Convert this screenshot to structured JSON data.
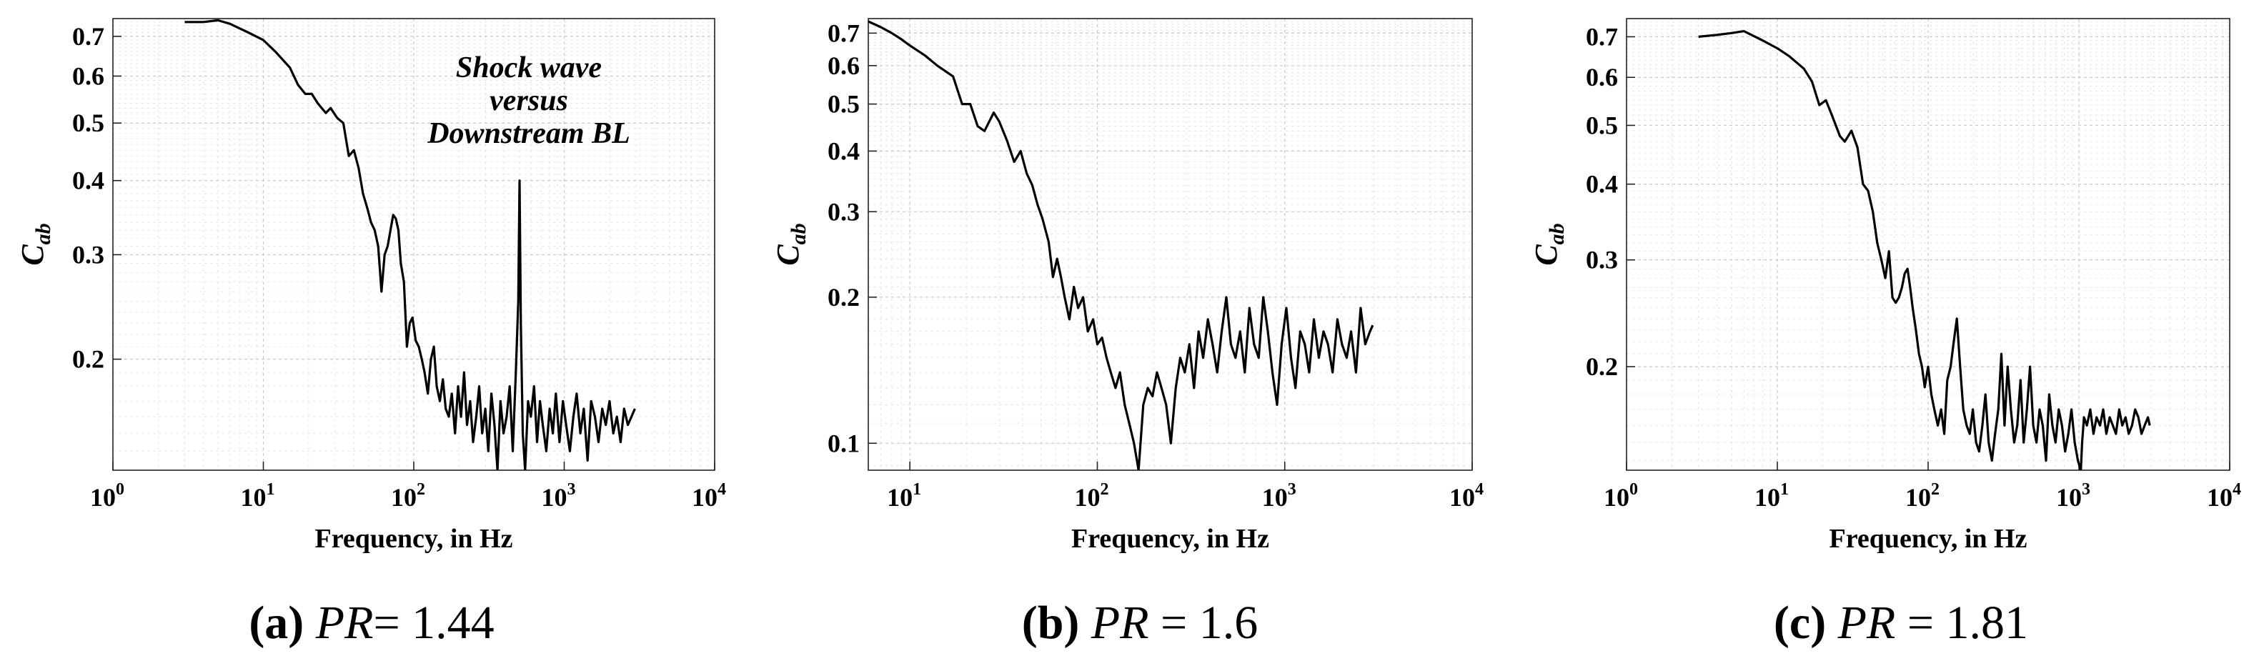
{
  "chart_data": [
    {
      "type": "line",
      "panel_letter": "(a)",
      "caption_pr_symbol": "PR",
      "caption_value": "= 1.44",
      "xlabel": "Frequency, in Hz",
      "ylabel_main": "C",
      "ylabel_sub": "ab",
      "x_scale": "log",
      "y_scale": "log",
      "xlim": [
        1,
        10000
      ],
      "ylim": [
        0.13,
        0.75
      ],
      "x_ticks": [
        {
          "base": "10",
          "exp": "0",
          "value": 1
        },
        {
          "base": "10",
          "exp": "1",
          "value": 10
        },
        {
          "base": "10",
          "exp": "2",
          "value": 100
        },
        {
          "base": "10",
          "exp": "3",
          "value": 1000
        },
        {
          "base": "10",
          "exp": "4",
          "value": 10000
        }
      ],
      "y_ticks": [
        {
          "label": "0.7",
          "value": 0.7
        },
        {
          "label": "0.6",
          "value": 0.6
        },
        {
          "label": "0.5",
          "value": 0.5
        },
        {
          "label": "0.4",
          "value": 0.4
        },
        {
          "label": "0.3",
          "value": 0.3
        },
        {
          "label": "0.2",
          "value": 0.2
        }
      ],
      "annotation": [
        "Shock wave",
        "versus",
        "Downstream BL"
      ],
      "grid": true,
      "series": [
        {
          "name": "Cab",
          "x": [
            3,
            4,
            5,
            6,
            8,
            10,
            12,
            15,
            17,
            19,
            21,
            23,
            26,
            28,
            31,
            34,
            37,
            40,
            43,
            46,
            49,
            52,
            55,
            58,
            61,
            64,
            67,
            70,
            73,
            76,
            79,
            82,
            86,
            90,
            94,
            98,
            103,
            108,
            113,
            118,
            124,
            130,
            136,
            142,
            149,
            156,
            163,
            171,
            179,
            188,
            197,
            206,
            216,
            226,
            237,
            248,
            260,
            272,
            285,
            299,
            313,
            328,
            344,
            360,
            377,
            395,
            414,
            434,
            455,
            477,
            495,
            505,
            515,
            530,
            550,
            575,
            600,
            630,
            660,
            690,
            720,
            760,
            800,
            840,
            880,
            930,
            980,
            1030,
            1090,
            1150,
            1210,
            1280,
            1350,
            1430,
            1510,
            1600,
            1690,
            1790,
            1890,
            2000,
            2120,
            2240,
            2370,
            2500,
            2650,
            2800,
            2950
          ],
          "y": [
            0.74,
            0.74,
            0.745,
            0.735,
            0.71,
            0.69,
            0.66,
            0.62,
            0.58,
            0.56,
            0.56,
            0.54,
            0.52,
            0.53,
            0.51,
            0.5,
            0.44,
            0.45,
            0.42,
            0.38,
            0.36,
            0.34,
            0.33,
            0.31,
            0.26,
            0.3,
            0.31,
            0.33,
            0.35,
            0.345,
            0.33,
            0.29,
            0.27,
            0.21,
            0.23,
            0.235,
            0.215,
            0.21,
            0.2,
            0.19,
            0.175,
            0.2,
            0.21,
            0.18,
            0.17,
            0.185,
            0.165,
            0.16,
            0.175,
            0.15,
            0.18,
            0.16,
            0.19,
            0.155,
            0.17,
            0.145,
            0.16,
            0.18,
            0.15,
            0.165,
            0.14,
            0.175,
            0.155,
            0.13,
            0.17,
            0.15,
            0.16,
            0.18,
            0.14,
            0.19,
            0.25,
            0.4,
            0.23,
            0.15,
            0.13,
            0.17,
            0.16,
            0.18,
            0.145,
            0.17,
            0.155,
            0.14,
            0.165,
            0.15,
            0.175,
            0.145,
            0.17,
            0.155,
            0.14,
            0.16,
            0.175,
            0.15,
            0.165,
            0.135,
            0.17,
            0.16,
            0.145,
            0.165,
            0.155,
            0.17,
            0.15,
            0.16,
            0.145,
            0.165,
            0.155,
            0.16,
            0.165
          ]
        }
      ]
    },
    {
      "type": "line",
      "panel_letter": "(b)",
      "caption_pr_symbol": "PR",
      "caption_value": " = 1.6",
      "xlabel": "Frequency, in Hz",
      "ylabel_main": "C",
      "ylabel_sub": "ab",
      "x_scale": "log",
      "y_scale": "log",
      "xlim": [
        6,
        10000
      ],
      "ylim": [
        0.088,
        0.75
      ],
      "x_ticks": [
        {
          "base": "10",
          "exp": "1",
          "value": 10
        },
        {
          "base": "10",
          "exp": "2",
          "value": 100
        },
        {
          "base": "10",
          "exp": "3",
          "value": 1000
        },
        {
          "base": "10",
          "exp": "4",
          "value": 10000
        }
      ],
      "y_ticks": [
        {
          "label": "0.7",
          "value": 0.7
        },
        {
          "label": "0.6",
          "value": 0.6
        },
        {
          "label": "0.5",
          "value": 0.5
        },
        {
          "label": "0.4",
          "value": 0.4
        },
        {
          "label": "0.3",
          "value": 0.3
        },
        {
          "label": "0.2",
          "value": 0.2
        },
        {
          "label": "0.1",
          "value": 0.1
        }
      ],
      "grid": true,
      "series": [
        {
          "name": "Cab",
          "x": [
            6,
            7,
            8,
            9,
            10,
            12,
            14,
            17,
            19,
            21,
            23,
            25,
            28,
            30,
            33,
            36,
            39,
            42,
            45,
            48,
            51,
            55,
            58,
            61,
            64,
            67,
            71,
            75,
            79,
            84,
            89,
            95,
            100,
            106,
            112,
            118,
            125,
            132,
            140,
            148,
            157,
            166,
            176,
            186,
            197,
            208,
            220,
            233,
            247,
            262,
            277,
            293,
            310,
            328,
            347,
            367,
            389,
            412,
            436,
            461,
            488,
            516,
            546,
            578,
            612,
            648,
            686,
            726,
            768,
            813,
            860,
            910,
            963,
            1020,
            1080,
            1140,
            1210,
            1280,
            1350,
            1430,
            1520,
            1610,
            1700,
            1800,
            1910,
            2020,
            2140,
            2260,
            2400,
            2540,
            2690,
            2850,
            2950
          ],
          "y": [
            0.74,
            0.72,
            0.7,
            0.68,
            0.66,
            0.63,
            0.6,
            0.57,
            0.5,
            0.5,
            0.45,
            0.44,
            0.48,
            0.46,
            0.42,
            0.38,
            0.4,
            0.36,
            0.34,
            0.31,
            0.29,
            0.26,
            0.22,
            0.24,
            0.22,
            0.2,
            0.18,
            0.21,
            0.19,
            0.2,
            0.17,
            0.18,
            0.16,
            0.165,
            0.15,
            0.14,
            0.13,
            0.14,
            0.12,
            0.11,
            0.1,
            0.088,
            0.12,
            0.13,
            0.125,
            0.14,
            0.13,
            0.12,
            0.1,
            0.13,
            0.15,
            0.14,
            0.16,
            0.13,
            0.17,
            0.15,
            0.18,
            0.16,
            0.14,
            0.17,
            0.2,
            0.16,
            0.15,
            0.17,
            0.14,
            0.19,
            0.16,
            0.15,
            0.2,
            0.17,
            0.14,
            0.12,
            0.16,
            0.19,
            0.15,
            0.13,
            0.17,
            0.16,
            0.14,
            0.18,
            0.15,
            0.17,
            0.16,
            0.14,
            0.18,
            0.16,
            0.15,
            0.17,
            0.14,
            0.19,
            0.16,
            0.17,
            0.175
          ]
        }
      ]
    },
    {
      "type": "line",
      "panel_letter": "(c)",
      "caption_pr_symbol": "PR",
      "caption_value": " = 1.81",
      "xlabel": "Frequency, in Hz",
      "ylabel_main": "C",
      "ylabel_sub": "ab",
      "x_scale": "log",
      "y_scale": "log",
      "xlim": [
        1,
        10000
      ],
      "ylim": [
        0.135,
        0.75
      ],
      "x_ticks": [
        {
          "base": "10",
          "exp": "0",
          "value": 1
        },
        {
          "base": "10",
          "exp": "1",
          "value": 10
        },
        {
          "base": "10",
          "exp": "2",
          "value": 100
        },
        {
          "base": "10",
          "exp": "3",
          "value": 1000
        },
        {
          "base": "10",
          "exp": "4",
          "value": 10000
        }
      ],
      "y_ticks": [
        {
          "label": "0.7",
          "value": 0.7
        },
        {
          "label": "0.6",
          "value": 0.6
        },
        {
          "label": "0.5",
          "value": 0.5
        },
        {
          "label": "0.4",
          "value": 0.4
        },
        {
          "label": "0.3",
          "value": 0.3
        },
        {
          "label": "0.2",
          "value": 0.2
        }
      ],
      "grid": true,
      "series": [
        {
          "name": "Cab",
          "x": [
            3,
            4,
            5,
            6,
            8,
            10,
            12,
            15,
            17,
            19,
            21,
            23,
            26,
            28,
            31,
            34,
            37,
            40,
            43,
            46,
            49,
            52,
            55,
            58,
            61,
            64,
            67,
            70,
            73,
            76,
            79,
            83,
            87,
            91,
            95,
            100,
            105,
            110,
            116,
            122,
            128,
            134,
            141,
            148,
            155,
            163,
            171,
            180,
            189,
            198,
            208,
            218,
            229,
            240,
            252,
            265,
            278,
            292,
            306,
            321,
            337,
            354,
            372,
            390,
            410,
            430,
            452,
            474,
            498,
            523,
            549,
            576,
            605,
            635,
            667,
            700,
            735,
            772,
            810,
            851,
            893,
            938,
            985,
            1030,
            1050,
            1080,
            1130,
            1190,
            1250,
            1310,
            1380,
            1450,
            1520,
            1600,
            1680,
            1760,
            1850,
            1940,
            2040,
            2140,
            2250,
            2360,
            2480,
            2600,
            2730,
            2870,
            2950
          ],
          "y": [
            0.7,
            0.705,
            0.71,
            0.715,
            0.69,
            0.67,
            0.65,
            0.62,
            0.59,
            0.54,
            0.55,
            0.52,
            0.48,
            0.47,
            0.49,
            0.46,
            0.4,
            0.39,
            0.36,
            0.32,
            0.3,
            0.28,
            0.31,
            0.26,
            0.255,
            0.26,
            0.27,
            0.285,
            0.29,
            0.27,
            0.25,
            0.23,
            0.21,
            0.2,
            0.185,
            0.2,
            0.18,
            0.17,
            0.16,
            0.17,
            0.155,
            0.19,
            0.2,
            0.22,
            0.24,
            0.2,
            0.17,
            0.16,
            0.155,
            0.17,
            0.15,
            0.145,
            0.16,
            0.18,
            0.15,
            0.14,
            0.155,
            0.17,
            0.21,
            0.16,
            0.2,
            0.17,
            0.15,
            0.16,
            0.19,
            0.15,
            0.17,
            0.2,
            0.16,
            0.15,
            0.17,
            0.16,
            0.14,
            0.18,
            0.16,
            0.15,
            0.17,
            0.16,
            0.145,
            0.155,
            0.17,
            0.15,
            0.14,
            0.135,
            0.15,
            0.165,
            0.16,
            0.17,
            0.155,
            0.165,
            0.16,
            0.17,
            0.155,
            0.165,
            0.16,
            0.155,
            0.17,
            0.16,
            0.165,
            0.155,
            0.16,
            0.17,
            0.165,
            0.155,
            0.16,
            0.165,
            0.16
          ]
        }
      ]
    }
  ]
}
